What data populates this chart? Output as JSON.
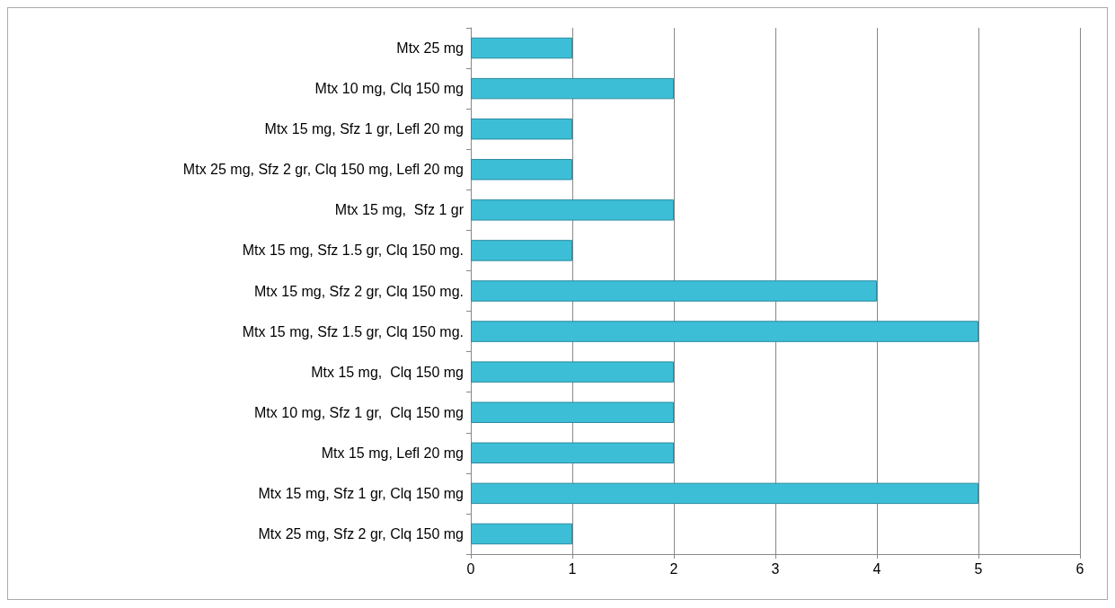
{
  "chart_data": {
    "type": "bar",
    "orientation": "horizontal",
    "categories": [
      "Mtx 25 mg",
      "Mtx 10 mg, Clq 150 mg",
      "Mtx 15 mg, Sfz 1 gr, Lefl 20 mg",
      "Mtx 25 mg, Sfz 2 gr, Clq 150 mg, Lefl 20 mg",
      "Mtx 15 mg,  Sfz 1 gr",
      "Mtx 15 mg, Sfz 1.5 gr, Clq 150 mg.",
      "Mtx 15 mg, Sfz 2 gr, Clq 150 mg.",
      "Mtx 15 mg, Sfz 1.5 gr, Clq 150 mg.",
      "Mtx 15 mg,  Clq 150 mg",
      "Mtx 10 mg, Sfz 1 gr,  Clq 150 mg",
      "Mtx 15 mg, Lefl 20 mg",
      "Mtx 15 mg, Sfz 1 gr, Clq 150 mg",
      "Mtx 25 mg, Sfz 2 gr, Clq 150 mg"
    ],
    "values": [
      1,
      2,
      1,
      1,
      2,
      1,
      4,
      5,
      2,
      2,
      2,
      5,
      1
    ],
    "color": "#3cbfd6",
    "xlim": [
      0,
      6
    ],
    "xticks": [
      0,
      1,
      2,
      3,
      4,
      5,
      6
    ],
    "grid": "x"
  }
}
